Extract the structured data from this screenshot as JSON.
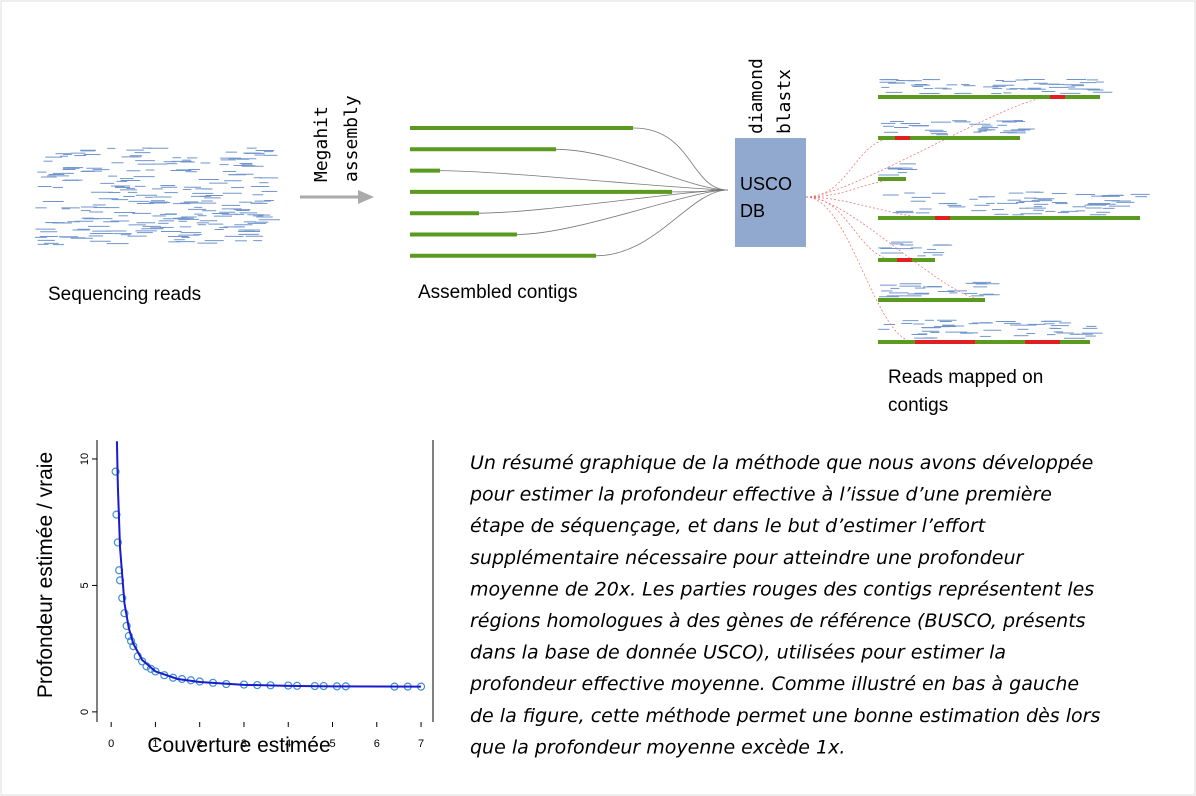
{
  "diagram": {
    "reads_label": "Sequencing reads",
    "assembler": [
      "Megahit",
      "assembly"
    ],
    "contigs_label": "Assembled contigs",
    "aligner": [
      "diamond",
      "blastx"
    ],
    "database": [
      "USCO",
      "DB"
    ],
    "mapped_label": [
      "Reads mapped on",
      "contigs"
    ]
  },
  "caption": [
    "Un résumé graphique de la méthode que nous avons développée",
    "pour estimer la profondeur effective à l’issue d’une première",
    "étape de séquençage, et dans le but d’estimer l’effort",
    "supplémentaire nécessaire pour atteindre une profondeur",
    "moyenne de 20x. Les parties rouges des contigs représentent les",
    "régions homologues à des gènes de référence (BUSCO, présents",
    "dans la base de donnée USCO), utilisées pour estimer la",
    "profondeur effective moyenne. Comme illustré en bas à gauche",
    "de la figure, cette méthode permet une bonne estimation dès lors",
    "que la profondeur moyenne excède 1x."
  ],
  "chart_data": {
    "type": "scatter",
    "xlabel": "Couverture estimée",
    "ylabel": "Profondeur estimée / vraie",
    "xlim": [
      -0.32,
      7.27
    ],
    "ylim": [
      -0.4,
      10.75
    ],
    "xticks": [
      0,
      1,
      2,
      3,
      4,
      5,
      6,
      7
    ],
    "yticks": [
      0,
      5,
      10
    ],
    "series": [
      {
        "style": "markers",
        "color": "#3f8fd0",
        "x": [
          0.1,
          0.12,
          0.15,
          0.18,
          0.2,
          0.25,
          0.3,
          0.35,
          0.4,
          0.45,
          0.5,
          0.6,
          0.7,
          0.8,
          0.9,
          1.0,
          1.2,
          1.4,
          1.6,
          1.8,
          2.0,
          2.3,
          2.6,
          3.0,
          3.3,
          3.6,
          4.0,
          4.2,
          4.6,
          4.8,
          5.1,
          5.3,
          6.4,
          6.7,
          7.0
        ],
        "values": [
          9.5,
          7.8,
          6.7,
          5.6,
          5.2,
          4.5,
          3.9,
          3.4,
          3.0,
          2.8,
          2.6,
          2.2,
          2.0,
          1.8,
          1.7,
          1.6,
          1.45,
          1.35,
          1.3,
          1.25,
          1.2,
          1.15,
          1.1,
          1.08,
          1.06,
          1.05,
          1.04,
          1.03,
          1.02,
          1.02,
          1.01,
          1.01,
          1.0,
          1.0,
          1.0
        ]
      },
      {
        "style": "line",
        "color": "#1a1ad0",
        "x": [
          0.13,
          0.15,
          0.2,
          0.3,
          0.4,
          0.5,
          0.7,
          1,
          1.5,
          2,
          3,
          4,
          5,
          7
        ],
        "values": [
          10.7,
          9.0,
          6.5,
          4.3,
          3.3,
          2.7,
          2.05,
          1.6,
          1.3,
          1.18,
          1.07,
          1.03,
          1.01,
          1.0
        ]
      }
    ]
  }
}
